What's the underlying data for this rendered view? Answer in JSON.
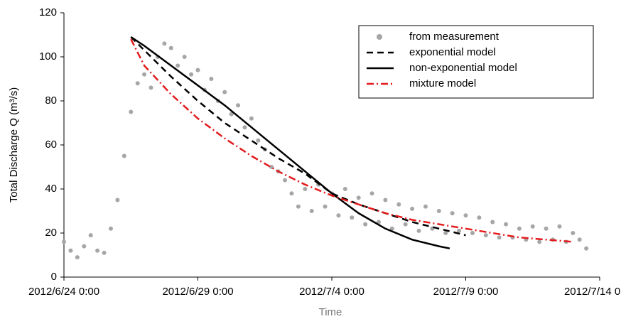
{
  "chart_data": {
    "type": "line",
    "x_label": "Time",
    "y_label": "Total Discharge Q (m³/s)",
    "xlim": [
      0,
      20
    ],
    "xticks": [
      {
        "value": 0,
        "label": "2012/6/24 0:00"
      },
      {
        "value": 5,
        "label": "2012/6/29 0:00"
      },
      {
        "value": 10,
        "label": "2012/7/4 0:00"
      },
      {
        "value": 15,
        "label": "2012/7/9 0:00"
      },
      {
        "value": 20,
        "label": "2012/7/14 0:00"
      }
    ],
    "ylim": [
      0,
      120
    ],
    "yticks": [
      0,
      20,
      40,
      60,
      80,
      100,
      120
    ],
    "grid": false,
    "legend": "top-right",
    "series": [
      {
        "name": "from measurement",
        "type": "scatter",
        "color": "#a6a6a6",
        "x": [
          0,
          0.25,
          0.5,
          0.75,
          1,
          1.25,
          1.5,
          1.75,
          2,
          2.25,
          2.5,
          2.75,
          3,
          3.25,
          3.5,
          3.75,
          4,
          4.25,
          4.5,
          4.75,
          5,
          5.25,
          5.5,
          5.75,
          6,
          6.25,
          6.5,
          6.75,
          7,
          7.25,
          7.5,
          7.75,
          8,
          8.25,
          8.5,
          8.75,
          9,
          9.25,
          9.5,
          9.75,
          10,
          10.25,
          10.5,
          10.75,
          11,
          11.25,
          11.5,
          11.75,
          12,
          12.25,
          12.5,
          12.75,
          13,
          13.25,
          13.5,
          13.75,
          14,
          14.25,
          14.5,
          14.75,
          15,
          15.25,
          15.5,
          15.75,
          16,
          16.25,
          16.5,
          16.75,
          17,
          17.25,
          17.5,
          17.75,
          18,
          18.25,
          18.5,
          18.75,
          19,
          19.25,
          19.5
        ],
        "values": [
          16,
          12,
          9,
          14,
          19,
          12,
          11,
          22,
          35,
          55,
          75,
          88,
          92,
          86,
          100,
          106,
          104,
          96,
          100,
          92,
          94,
          85,
          90,
          80,
          84,
          74,
          78,
          68,
          72,
          62,
          58,
          50,
          48,
          44,
          38,
          32,
          40,
          30,
          42,
          32,
          38,
          28,
          40,
          27,
          36,
          24,
          38,
          25,
          35,
          22,
          33,
          24,
          31,
          21,
          32,
          22,
          30,
          20,
          29,
          21,
          28,
          20,
          27,
          19,
          25,
          18,
          24,
          18,
          22,
          17,
          23,
          16,
          22,
          17,
          23,
          16,
          20,
          17,
          13
        ]
      },
      {
        "name": "exponential model",
        "type": "line",
        "color": "#000000",
        "dash": "9,6",
        "x": [
          2.5,
          3,
          4,
          5,
          6,
          7,
          8,
          9,
          10,
          11,
          12,
          13,
          14,
          15
        ],
        "values": [
          109,
          103,
          91,
          80,
          70,
          62,
          54,
          47,
          38,
          33,
          29,
          25,
          22,
          19
        ]
      },
      {
        "name": "non-exponential model",
        "type": "line",
        "color": "#000000",
        "dash": "none",
        "x": [
          2.5,
          3,
          4,
          5,
          6,
          7,
          8,
          9,
          10,
          11,
          12,
          13,
          14,
          14.4
        ],
        "values": [
          109,
          105,
          96,
          87,
          78,
          68,
          58,
          48,
          38,
          29,
          22,
          17,
          14,
          13
        ]
      },
      {
        "name": "mixture model",
        "type": "line",
        "color": "#e41a1c",
        "dash": "10,4,2,4",
        "x": [
          2.5,
          3,
          4,
          5,
          6,
          7,
          8,
          9,
          10,
          11,
          12,
          13,
          14,
          15,
          16,
          17,
          18,
          19
        ],
        "values": [
          108,
          96,
          83,
          72,
          63,
          55,
          48,
          42,
          37,
          33,
          29,
          26,
          24,
          22,
          20,
          18,
          17,
          16
        ]
      }
    ]
  }
}
